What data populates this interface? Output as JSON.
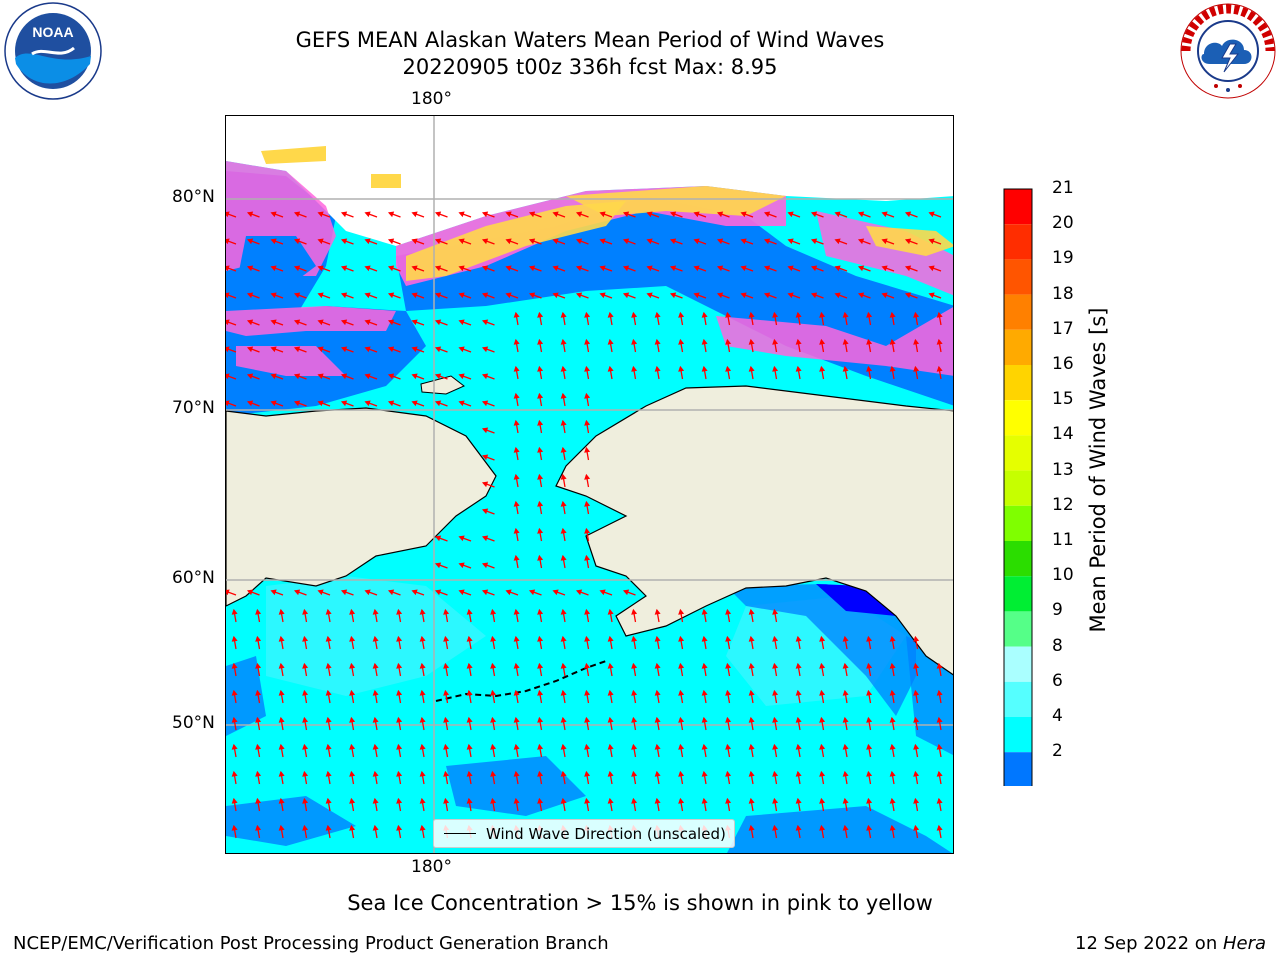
{
  "title": {
    "line1": "GEFS MEAN Alaskan Waters Mean Period of Wind Waves",
    "line2": "20220905 t00z 336h fcst   Max: 8.95"
  },
  "map": {
    "grid_labels": {
      "top_lon": "180°",
      "bottom_lon": "180°",
      "lat_labels": [
        "80°N",
        "70°N",
        "60°N",
        "50°N"
      ]
    },
    "colors": {
      "land": "#efeedd",
      "ocean_high": "#00ffff",
      "ocean_mid": "#3ff5ff",
      "ocean_low": "#0080ff",
      "arrow": "#ff0000",
      "ice_pink": "#ff66dd",
      "ice_yellow": "#ffe040"
    },
    "legend": {
      "label": "Wind Wave Direction (unscaled)"
    }
  },
  "colorbar": {
    "title": "Mean Period of Wind Waves [s]",
    "ticks": [
      "21",
      "20",
      "19",
      "18",
      "17",
      "16",
      "15",
      "14",
      "13",
      "12",
      "11",
      "10",
      "9",
      "8",
      "6",
      "4",
      "2"
    ],
    "colors": [
      "#ff0000",
      "#ff2d00",
      "#ff5500",
      "#ff8000",
      "#ffaa00",
      "#ffd400",
      "#ffff00",
      "#e5ff00",
      "#c6ff00",
      "#7fff00",
      "#2bdd00",
      "#00ee33",
      "#55ff88",
      "#aaffff",
      "#55ffff",
      "#00ffff",
      "#0077ff"
    ],
    "extend_color": "#0000ff"
  },
  "logos": {
    "left_icon": "noaa-logo-icon",
    "right_icon": "nws-logo-icon",
    "right_text": "NATIONAL WEATHER SERVICE"
  },
  "subtitle": "Sea Ice Concentration > 15% is shown in pink to yellow",
  "footer": {
    "left": "NCEP/EMC/Verification Post Processing Product Generation Branch",
    "right_prefix": "12 Sep 2022 on ",
    "right_host": "Hera"
  }
}
